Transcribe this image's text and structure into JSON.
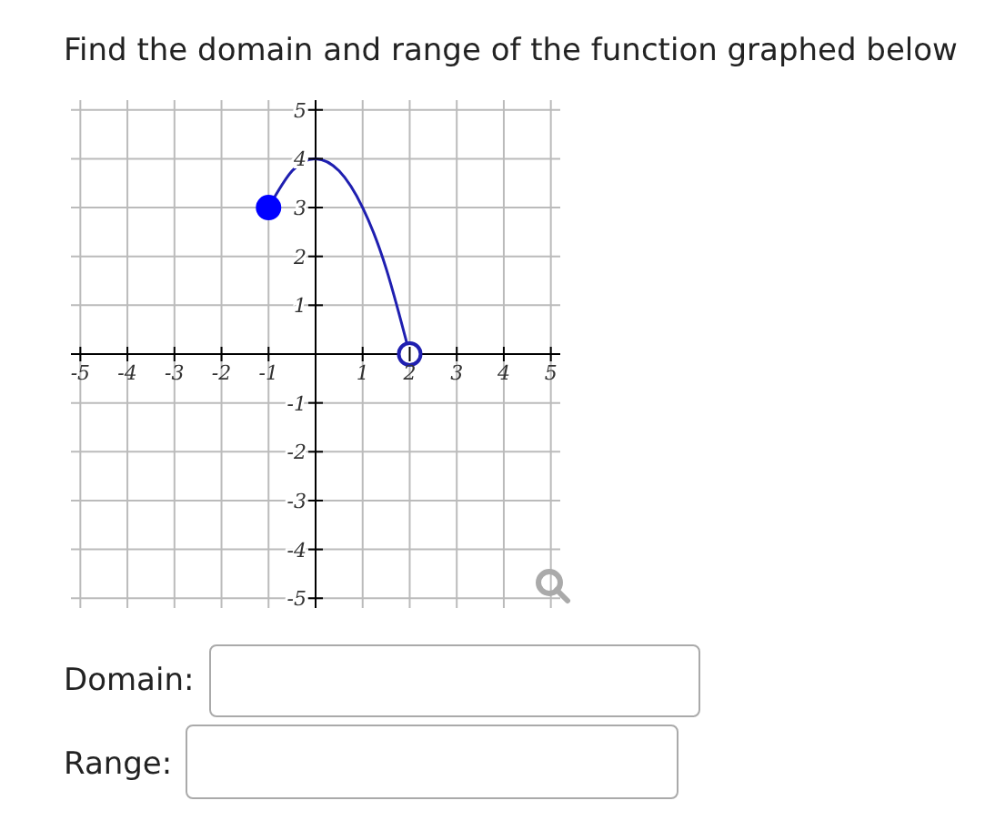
{
  "chart_data": {
    "type": "line",
    "title": "Find the domain and range of the function graphed below",
    "annotations": [
      "Domain:",
      "Range:"
    ],
    "xlim": [
      -5.2,
      5.2
    ],
    "ylim": [
      -5.2,
      5.2
    ],
    "xticks": [
      -5,
      -4,
      -3,
      -2,
      -1,
      1,
      2,
      3,
      4,
      5
    ],
    "yticks": [
      -5,
      -4,
      -3,
      -2,
      -1,
      1,
      2,
      3,
      4,
      5
    ],
    "grid": true,
    "series": [
      {
        "color": "#1f1fb0",
        "marker": "none",
        "x": [
          -1,
          -0.5,
          0,
          0.5,
          1,
          1.5,
          2
        ],
        "values": [
          3,
          3.75,
          4,
          3.75,
          3,
          1.75,
          0
        ]
      },
      {
        "type": "scatter",
        "color": "#0000ff",
        "marker": "circle",
        "x": [
          -1
        ],
        "values": [
          3
        ]
      },
      {
        "type": "scatter",
        "color": "#1f1fb0",
        "marker": "circle",
        "x": [
          2
        ],
        "values": [
          0
        ]
      }
    ]
  }
}
